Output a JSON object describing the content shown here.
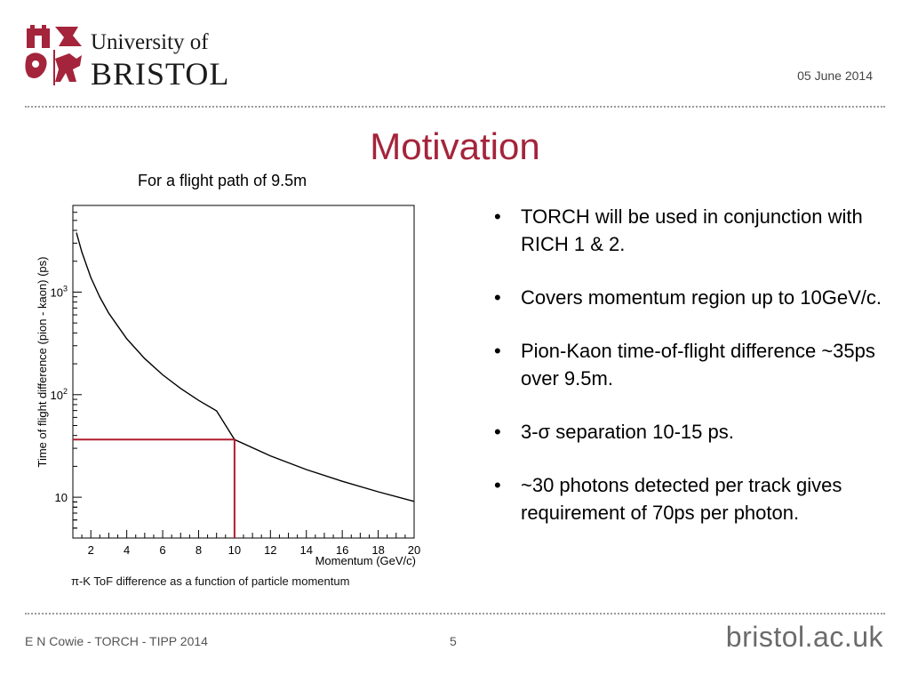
{
  "header": {
    "logo_line1": "University of",
    "logo_line2": "BRISTOL",
    "date": "05 June 2014"
  },
  "slide": {
    "title": "Motivation",
    "caption": "π-K ToF difference as a function of particle momentum",
    "bullets": [
      "TORCH will be used in conjunction with RICH 1 & 2.",
      "Covers momentum region up to 10GeV/c.",
      "Pion-Kaon time-of-flight difference ~35ps over 9.5m.",
      "3-σ separation 10-15 ps.",
      "~30 photons detected per track gives requirement of 70ps per photon."
    ],
    "bullet_symbol": "•"
  },
  "footer": {
    "left": "E N Cowie - TORCH - TIPP 2014",
    "page": "5",
    "site": "bristol.ac.uk"
  },
  "colors": {
    "accent": "#a4243b",
    "marker_line": "#b01c2e"
  },
  "chart_data": {
    "type": "line",
    "title": "For a flight path of 9.5m",
    "xlabel": "Momentum (GeV/c)",
    "ylabel": "Time of flight difference (pion - kaon) (ps)",
    "xlim": [
      1,
      20
    ],
    "ylim": [
      4,
      7000
    ],
    "yscale": "log",
    "xticks": [
      2,
      4,
      6,
      8,
      10,
      12,
      14,
      16,
      18,
      20
    ],
    "yticks": [
      {
        "value": 10,
        "label": "10",
        "sup": ""
      },
      {
        "value": 100,
        "label": "10",
        "sup": "2"
      },
      {
        "value": 1000,
        "label": "10",
        "sup": "3"
      }
    ],
    "grid": false,
    "series": [
      {
        "x": [
          1.2,
          1.5,
          2,
          2.5,
          3,
          4,
          5,
          6,
          7,
          8,
          9,
          10,
          12,
          14,
          16,
          18,
          20
        ],
        "y": [
          3800,
          2460,
          1390,
          895,
          623,
          351,
          225,
          156,
          115,
          88,
          69.5,
          36.5,
          25.3,
          18.6,
          14.3,
          11.3,
          9.1
        ]
      }
    ],
    "marker": {
      "x": 10,
      "y": 36.5
    }
  }
}
